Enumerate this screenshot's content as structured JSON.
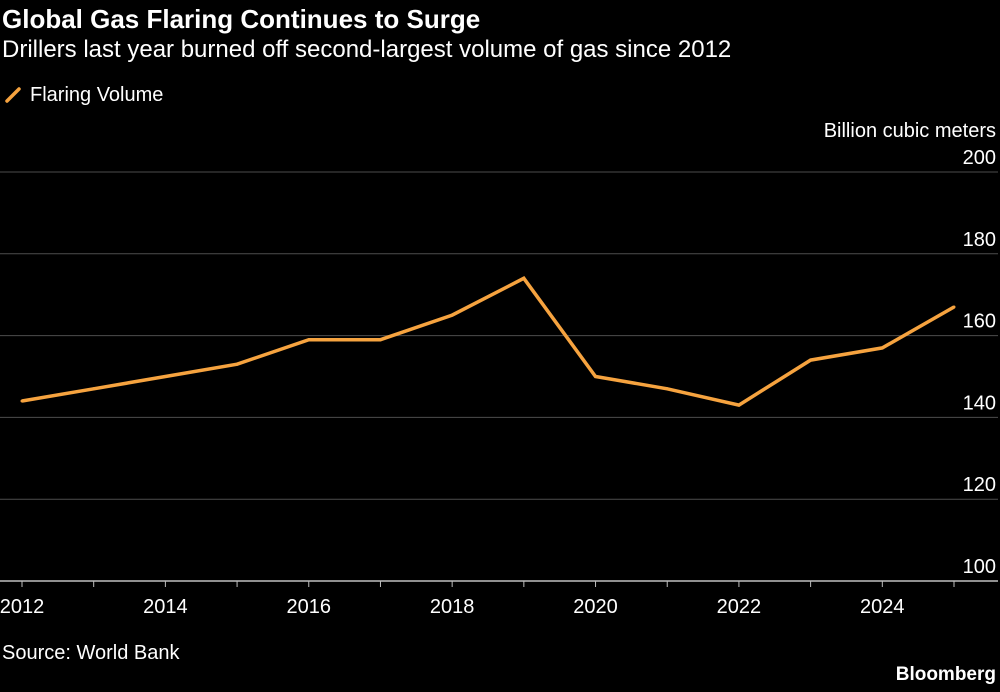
{
  "header": {
    "title": "Global Gas Flaring Continues to Surge",
    "subtitle": "Drillers last year burned off second-largest volume of gas since 2012"
  },
  "footer": {
    "source": "Source: World Bank",
    "brand": "Bloomberg"
  },
  "colors": {
    "background": "#000000",
    "line": "#f6a33f",
    "grid": "#4d4d4d",
    "text": "#ffffff"
  },
  "chart_data": {
    "type": "line",
    "ylabel": "Billion cubic meters",
    "ylim": [
      100,
      200
    ],
    "yticks": [
      100,
      120,
      140,
      160,
      180,
      200
    ],
    "xlim": [
      2012,
      2025
    ],
    "xticks": [
      2012,
      2014,
      2016,
      2018,
      2020,
      2022,
      2024
    ],
    "grid": true,
    "legend_position": "top-left",
    "series": [
      {
        "name": "Flaring Volume",
        "x": [
          2012,
          2013,
          2014,
          2015,
          2016,
          2017,
          2018,
          2019,
          2020,
          2021,
          2022,
          2023,
          2024,
          2025
        ],
        "values": [
          144,
          147,
          150,
          153,
          159,
          159,
          165,
          174,
          150,
          147,
          143,
          154,
          157,
          167
        ]
      }
    ]
  }
}
